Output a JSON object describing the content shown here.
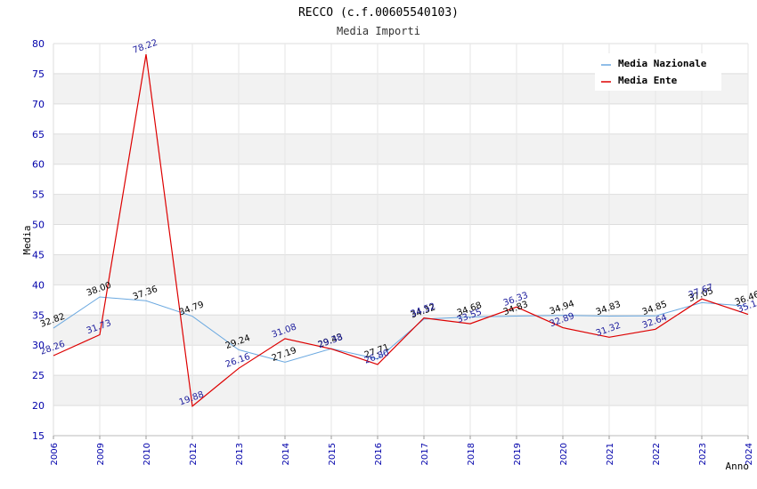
{
  "chart_data": {
    "type": "line",
    "title": "RECCO (c.f.00605540103)",
    "subtitle": "Media Importi",
    "xlabel": "Anno",
    "ylabel": "Media",
    "ylim": [
      15,
      80
    ],
    "yticks": [
      15,
      20,
      25,
      30,
      35,
      40,
      45,
      50,
      55,
      60,
      65,
      70,
      75,
      80
    ],
    "categories": [
      "2006",
      "2009",
      "2010",
      "2012",
      "2013",
      "2014",
      "2015",
      "2016",
      "2017",
      "2018",
      "2019",
      "2020",
      "2021",
      "2022",
      "2023",
      "2024"
    ],
    "series": [
      {
        "name": "Media Nazionale",
        "color": "#6aa8e0",
        "values": [
          32.82,
          38.0,
          37.36,
          34.79,
          29.24,
          27.19,
          29.43,
          27.71,
          34.32,
          34.68,
          34.83,
          34.94,
          34.83,
          34.85,
          37.05,
          36.46
        ],
        "labels": [
          "32.82",
          "38.00",
          "37.36",
          "34.79",
          "29.24",
          "27.19",
          "29.43",
          "27.71",
          "34.32",
          "34.68",
          "34.83",
          "34.94",
          "34.83",
          "34.85",
          "37.05",
          "36.46"
        ]
      },
      {
        "name": "Media Ente",
        "color": "#dd0000",
        "values": [
          28.26,
          31.73,
          78.22,
          19.88,
          26.16,
          31.08,
          29.38,
          26.8,
          34.52,
          33.55,
          36.33,
          32.89,
          31.32,
          32.64,
          37.67,
          35.1
        ],
        "labels": [
          "28.26",
          "31.73",
          "78.22",
          "19.88",
          "26.16",
          "31.08",
          "29.38",
          "26.80",
          "34.52",
          "33.55",
          "36.33",
          "32.89",
          "31.32",
          "32.64",
          "37.67",
          "35.1"
        ]
      }
    ],
    "legend_position": "top-right",
    "grid": true
  }
}
